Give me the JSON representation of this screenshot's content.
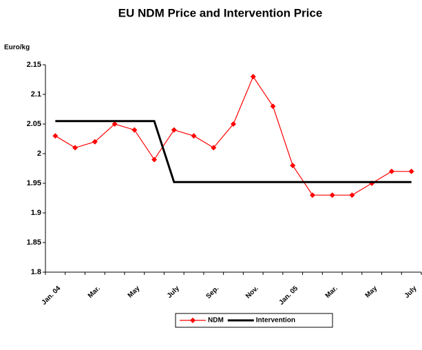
{
  "chart_data": {
    "type": "line",
    "title": "EU NDM Price and Intervention Price",
    "y_label": "Euro/kg",
    "categories": [
      "Jan. 04",
      null,
      "Mar.",
      null,
      "May",
      null,
      "July",
      null,
      "Sep.",
      null,
      "Nov.",
      null,
      "Jan. 05",
      null,
      "Mar.",
      null,
      "May",
      null,
      "July"
    ],
    "series": [
      {
        "name": "NDM",
        "color": "#ff0000",
        "marker": "diamond",
        "values": [
          2.03,
          2.01,
          2.02,
          2.05,
          2.04,
          1.99,
          2.04,
          2.03,
          2.01,
          2.05,
          2.13,
          2.08,
          1.98,
          1.93,
          1.93,
          1.93,
          1.95,
          1.97,
          1.97
        ]
      },
      {
        "name": "Intervention",
        "color": "#000000",
        "values": [
          2.055,
          2.055,
          2.055,
          2.055,
          2.055,
          2.055,
          1.952,
          1.952,
          1.952,
          1.952,
          1.952,
          1.952,
          1.952,
          1.952,
          1.952,
          1.952,
          1.952,
          1.952,
          1.952
        ]
      }
    ],
    "ylim": [
      1.8,
      2.15
    ],
    "yticks": [
      1.8,
      1.85,
      1.9,
      1.95,
      2,
      2.05,
      2.1,
      2.15
    ],
    "grid": false,
    "legend": "bottom"
  }
}
